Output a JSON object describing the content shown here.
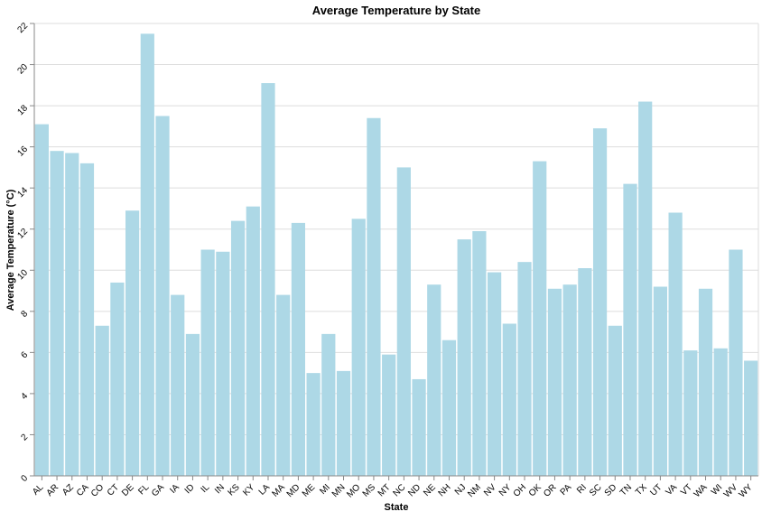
{
  "chart_data": {
    "type": "bar",
    "title": "Average Temperature by State",
    "xlabel": "State",
    "ylabel": "Average Temperature (°C)",
    "ylim": [
      0,
      22
    ],
    "yticks": [
      0,
      2,
      4,
      6,
      8,
      10,
      12,
      14,
      16,
      18,
      20,
      22
    ],
    "grid": "horizontal",
    "categories": [
      "AL",
      "AR",
      "AZ",
      "CA",
      "CO",
      "CT",
      "DE",
      "FL",
      "GA",
      "IA",
      "ID",
      "IL",
      "IN",
      "KS",
      "KY",
      "LA",
      "MA",
      "MD",
      "ME",
      "MI",
      "MN",
      "MO",
      "MS",
      "MT",
      "NC",
      "ND",
      "NE",
      "NH",
      "NJ",
      "NM",
      "NV",
      "NY",
      "OH",
      "OK",
      "OR",
      "PA",
      "RI",
      "SC",
      "SD",
      "TN",
      "TX",
      "UT",
      "VA",
      "VT",
      "WA",
      "WI",
      "WV",
      "WY"
    ],
    "values": [
      17.1,
      15.8,
      15.7,
      15.2,
      7.3,
      9.4,
      12.9,
      21.5,
      17.5,
      8.8,
      6.9,
      11.0,
      10.9,
      12.4,
      13.1,
      19.1,
      8.8,
      12.3,
      5.0,
      6.9,
      5.1,
      12.5,
      17.4,
      5.9,
      15.0,
      4.7,
      9.3,
      6.6,
      11.5,
      11.9,
      9.9,
      7.4,
      10.4,
      15.3,
      9.1,
      9.3,
      10.1,
      16.9,
      7.3,
      14.2,
      18.2,
      9.2,
      12.8,
      6.1,
      9.1,
      6.2,
      11.0,
      5.6
    ],
    "colors": {
      "bar": "#add8e6",
      "grid": "#dddddd",
      "axis": "#888888"
    }
  }
}
